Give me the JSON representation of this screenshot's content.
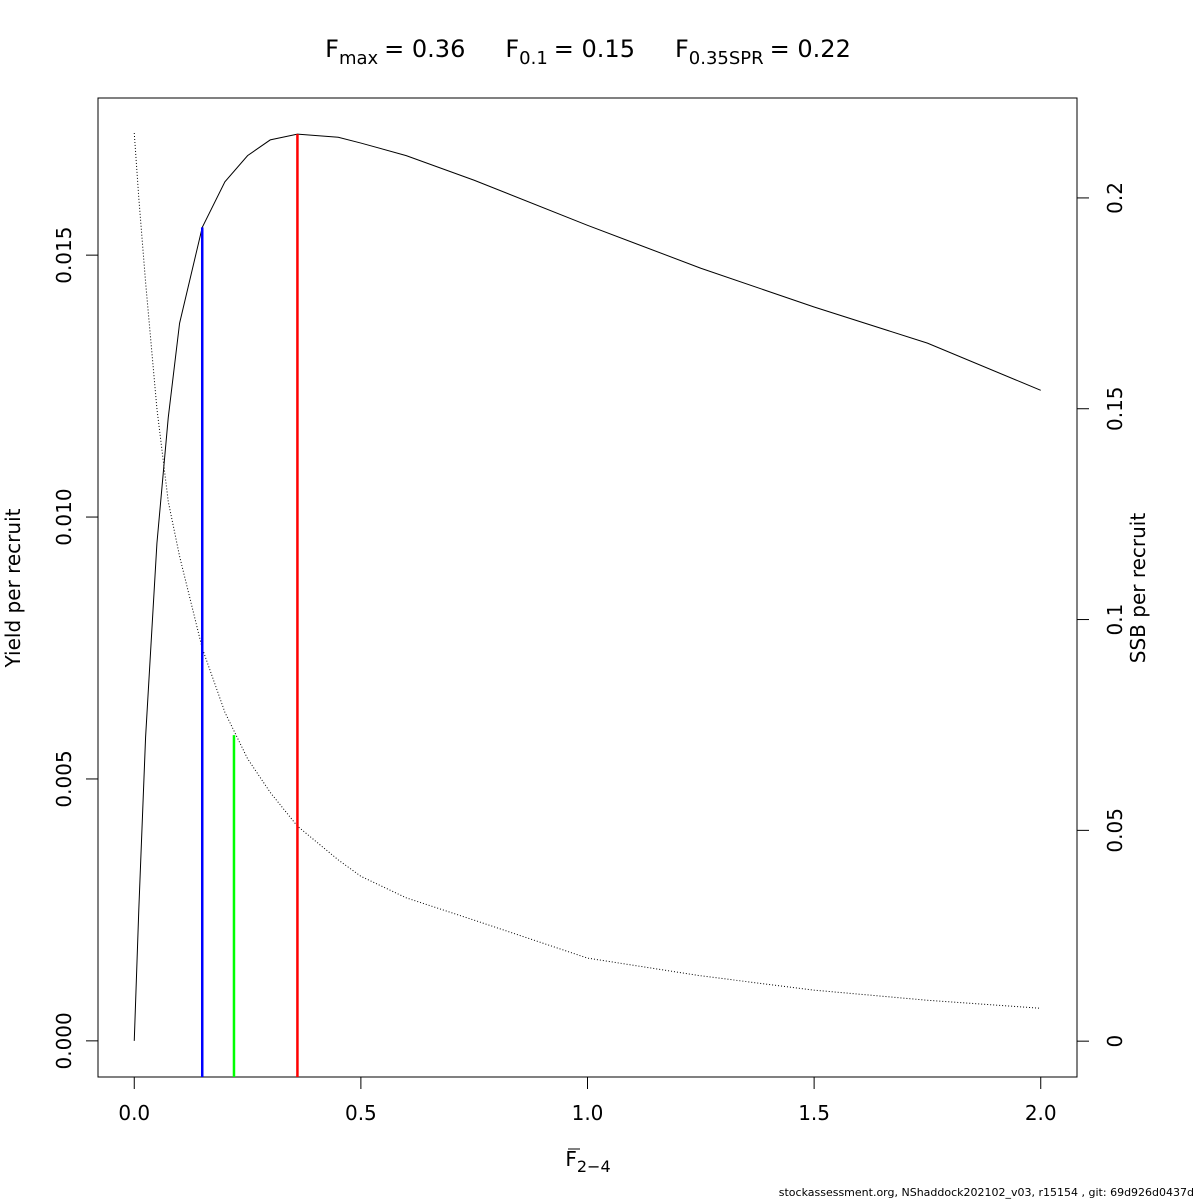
{
  "chart_data": {
    "type": "line",
    "title": [
      {
        "symbol": "F",
        "subscript": "max",
        "text": "= 0.36"
      },
      {
        "symbol": "F",
        "subscript": "0.1",
        "text": "= 0.15"
      },
      {
        "symbol": "F",
        "subscript": "0.35SPR",
        "text": "= 0.22"
      }
    ],
    "xlabel": {
      "symbol": "F",
      "subscript": "2−4"
    },
    "ylabel": "Yield per recruit",
    "y2label": "SSB per recruit",
    "footer": "stockassessment.org, NShaddock202102_v03, r15154 , git: 69d926d0437d",
    "x": [
      0,
      0.01,
      0.025,
      0.05,
      0.075,
      0.1,
      0.15,
      0.2,
      0.25,
      0.3,
      0.36,
      0.45,
      0.5,
      0.6,
      0.75,
      1.0,
      1.25,
      1.5,
      1.75,
      2.0
    ],
    "series": [
      {
        "name": "Yield per recruit",
        "color": "#000000",
        "dash": "solid",
        "values": [
          0,
          0.0025,
          0.0058,
          0.0095,
          0.0119,
          0.0137,
          0.01553,
          0.0164,
          0.0169,
          0.0172,
          0.01731,
          0.01725,
          0.01714,
          0.0169,
          0.01643,
          0.01557,
          0.01475,
          0.01401,
          0.01332,
          0.01242
        ]
      },
      {
        "name": "SSB per recruit",
        "color": "#000000",
        "dash": "dotted",
        "axis": "y2",
        "values": [
          0.2154,
          0.2,
          0.18,
          0.15,
          0.128,
          0.115,
          0.0932,
          0.078,
          0.067,
          0.059,
          0.051,
          0.043,
          0.0391,
          0.034,
          0.0287,
          0.0197,
          0.0155,
          0.0121,
          0.0097,
          0.0078
        ]
      }
    ],
    "reference_lines": [
      {
        "x": 0.36,
        "y": 0.01731,
        "color": "#ff0000"
      },
      {
        "x": 0.15,
        "y": 0.01553,
        "color": "#0000ff"
      },
      {
        "x": 0.22,
        "y": 0.0726,
        "axis": "y2",
        "color": "#00ff00"
      }
    ],
    "xlim": [
      -0.08,
      2.08
    ],
    "ylim": [
      -0.00069,
      0.018
    ],
    "y2lim": [
      -0.0085,
      0.2237
    ],
    "xticks": [
      {
        "value": 0,
        "label": "0.0"
      },
      {
        "value": 0.5,
        "label": "0.5"
      },
      {
        "value": 1,
        "label": "1.0"
      },
      {
        "value": 1.5,
        "label": "1.5"
      },
      {
        "value": 2,
        "label": "2.0"
      }
    ],
    "yticks": [
      {
        "value": 0,
        "label": "0.000"
      },
      {
        "value": 0.005,
        "label": "0.005"
      },
      {
        "value": 0.01,
        "label": "0.010"
      },
      {
        "value": 0.015,
        "label": "0.015"
      }
    ],
    "y2ticks": [
      0,
      0.05,
      0.1,
      0.15,
      0.2
    ]
  }
}
